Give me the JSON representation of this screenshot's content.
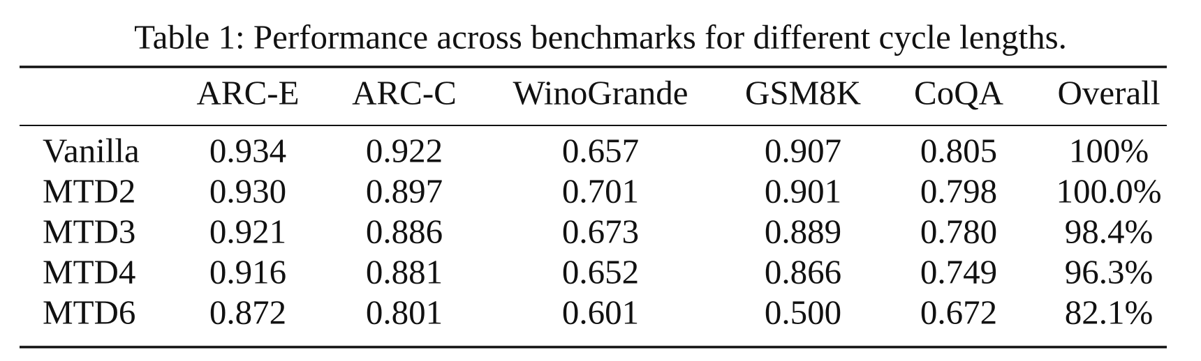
{
  "caption": "Table 1: Performance across benchmarks for different cycle lengths.",
  "table": {
    "header": [
      "ARC-E",
      "ARC-C",
      "WinoGrande",
      "GSM8K",
      "CoQA",
      "Overall"
    ],
    "rows": [
      [
        "Vanilla",
        "0.934",
        "0.922",
        "0.657",
        "0.907",
        "0.805",
        "100%"
      ],
      [
        "MTD2",
        "0.930",
        "0.897",
        "0.701",
        "0.901",
        "0.798",
        "100.0%"
      ],
      [
        "MTD3",
        "0.921",
        "0.886",
        "0.673",
        "0.889",
        "0.780",
        "98.4%"
      ],
      [
        "MTD4",
        "0.916",
        "0.881",
        "0.652",
        "0.866",
        "0.749",
        "96.3%"
      ],
      [
        "MTD6",
        "0.872",
        "0.801",
        "0.601",
        "0.500",
        "0.672",
        "82.1%"
      ]
    ]
  }
}
